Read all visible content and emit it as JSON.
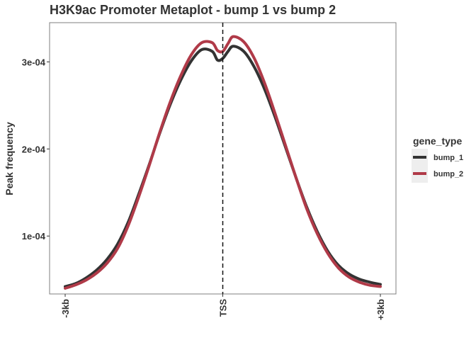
{
  "chart_data": {
    "type": "line",
    "title": "H3K9ac Promoter Metaplot - bump 1 vs bump 2",
    "xlabel": "",
    "ylabel": "Peak frequency",
    "x_ticks": [
      {
        "pos": -3000,
        "label": "-3kb"
      },
      {
        "pos": 0,
        "label": "TSS"
      },
      {
        "pos": 3000,
        "label": "+3kb"
      }
    ],
    "y_ticks": [
      {
        "value": 0.0001,
        "label": "1e-04"
      },
      {
        "value": 0.0002,
        "label": "2e-04"
      },
      {
        "value": 0.0003,
        "label": "3e-04"
      }
    ],
    "xlim": [
      -3000,
      3000
    ],
    "ylim": [
      3.35e-05,
      0.000345
    ],
    "grid": false,
    "vline": {
      "x": 0,
      "style": "dashed"
    },
    "legend": {
      "title": "gene_type",
      "placement": "right",
      "entries": [
        "bump_1",
        "bump_2"
      ]
    },
    "x": [
      -3000,
      -2800,
      -2600,
      -2400,
      -2200,
      -2000,
      -1800,
      -1600,
      -1400,
      -1200,
      -1000,
      -800,
      -600,
      -400,
      -200,
      -100,
      0,
      100,
      200,
      400,
      600,
      800,
      1000,
      1200,
      1400,
      1600,
      1800,
      2000,
      2200,
      2400,
      2600,
      2800,
      3000
    ],
    "series": [
      {
        "name": "bump_1",
        "color": "#333333",
        "values": [
          4.2e-05,
          4.55e-05,
          5.2e-05,
          6.1e-05,
          7.35e-05,
          9.1e-05,
          0.000116,
          0.000148,
          0.000182,
          0.000218,
          0.000251,
          0.000279,
          0.000301,
          0.000314,
          0.000312,
          0.000302,
          0.000304,
          0.000312,
          0.000318,
          0.000312,
          0.000294,
          0.000268,
          0.000236,
          0.000201,
          0.000166,
          0.000133,
          0.000105,
          8.25e-05,
          6.65e-05,
          5.65e-05,
          5.05e-05,
          4.7e-05,
          4.45e-05
        ]
      },
      {
        "name": "bump_2",
        "color": "#b03a48",
        "values": [
          4e-05,
          4.4e-05,
          4.95e-05,
          5.75e-05,
          6.9e-05,
          8.6e-05,
          0.000112,
          0.000145,
          0.000181,
          0.000219,
          0.000254,
          0.000284,
          0.000308,
          0.000322,
          0.000322,
          0.000313,
          0.000312,
          0.000321,
          0.000329,
          0.000323,
          0.000304,
          0.000275,
          0.00024,
          0.000203,
          0.000166,
          0.000131,
          0.0001025,
          8e-05,
          6.35e-05,
          5.3e-05,
          4.7e-05,
          4.35e-05,
          4.2e-05
        ]
      }
    ]
  }
}
